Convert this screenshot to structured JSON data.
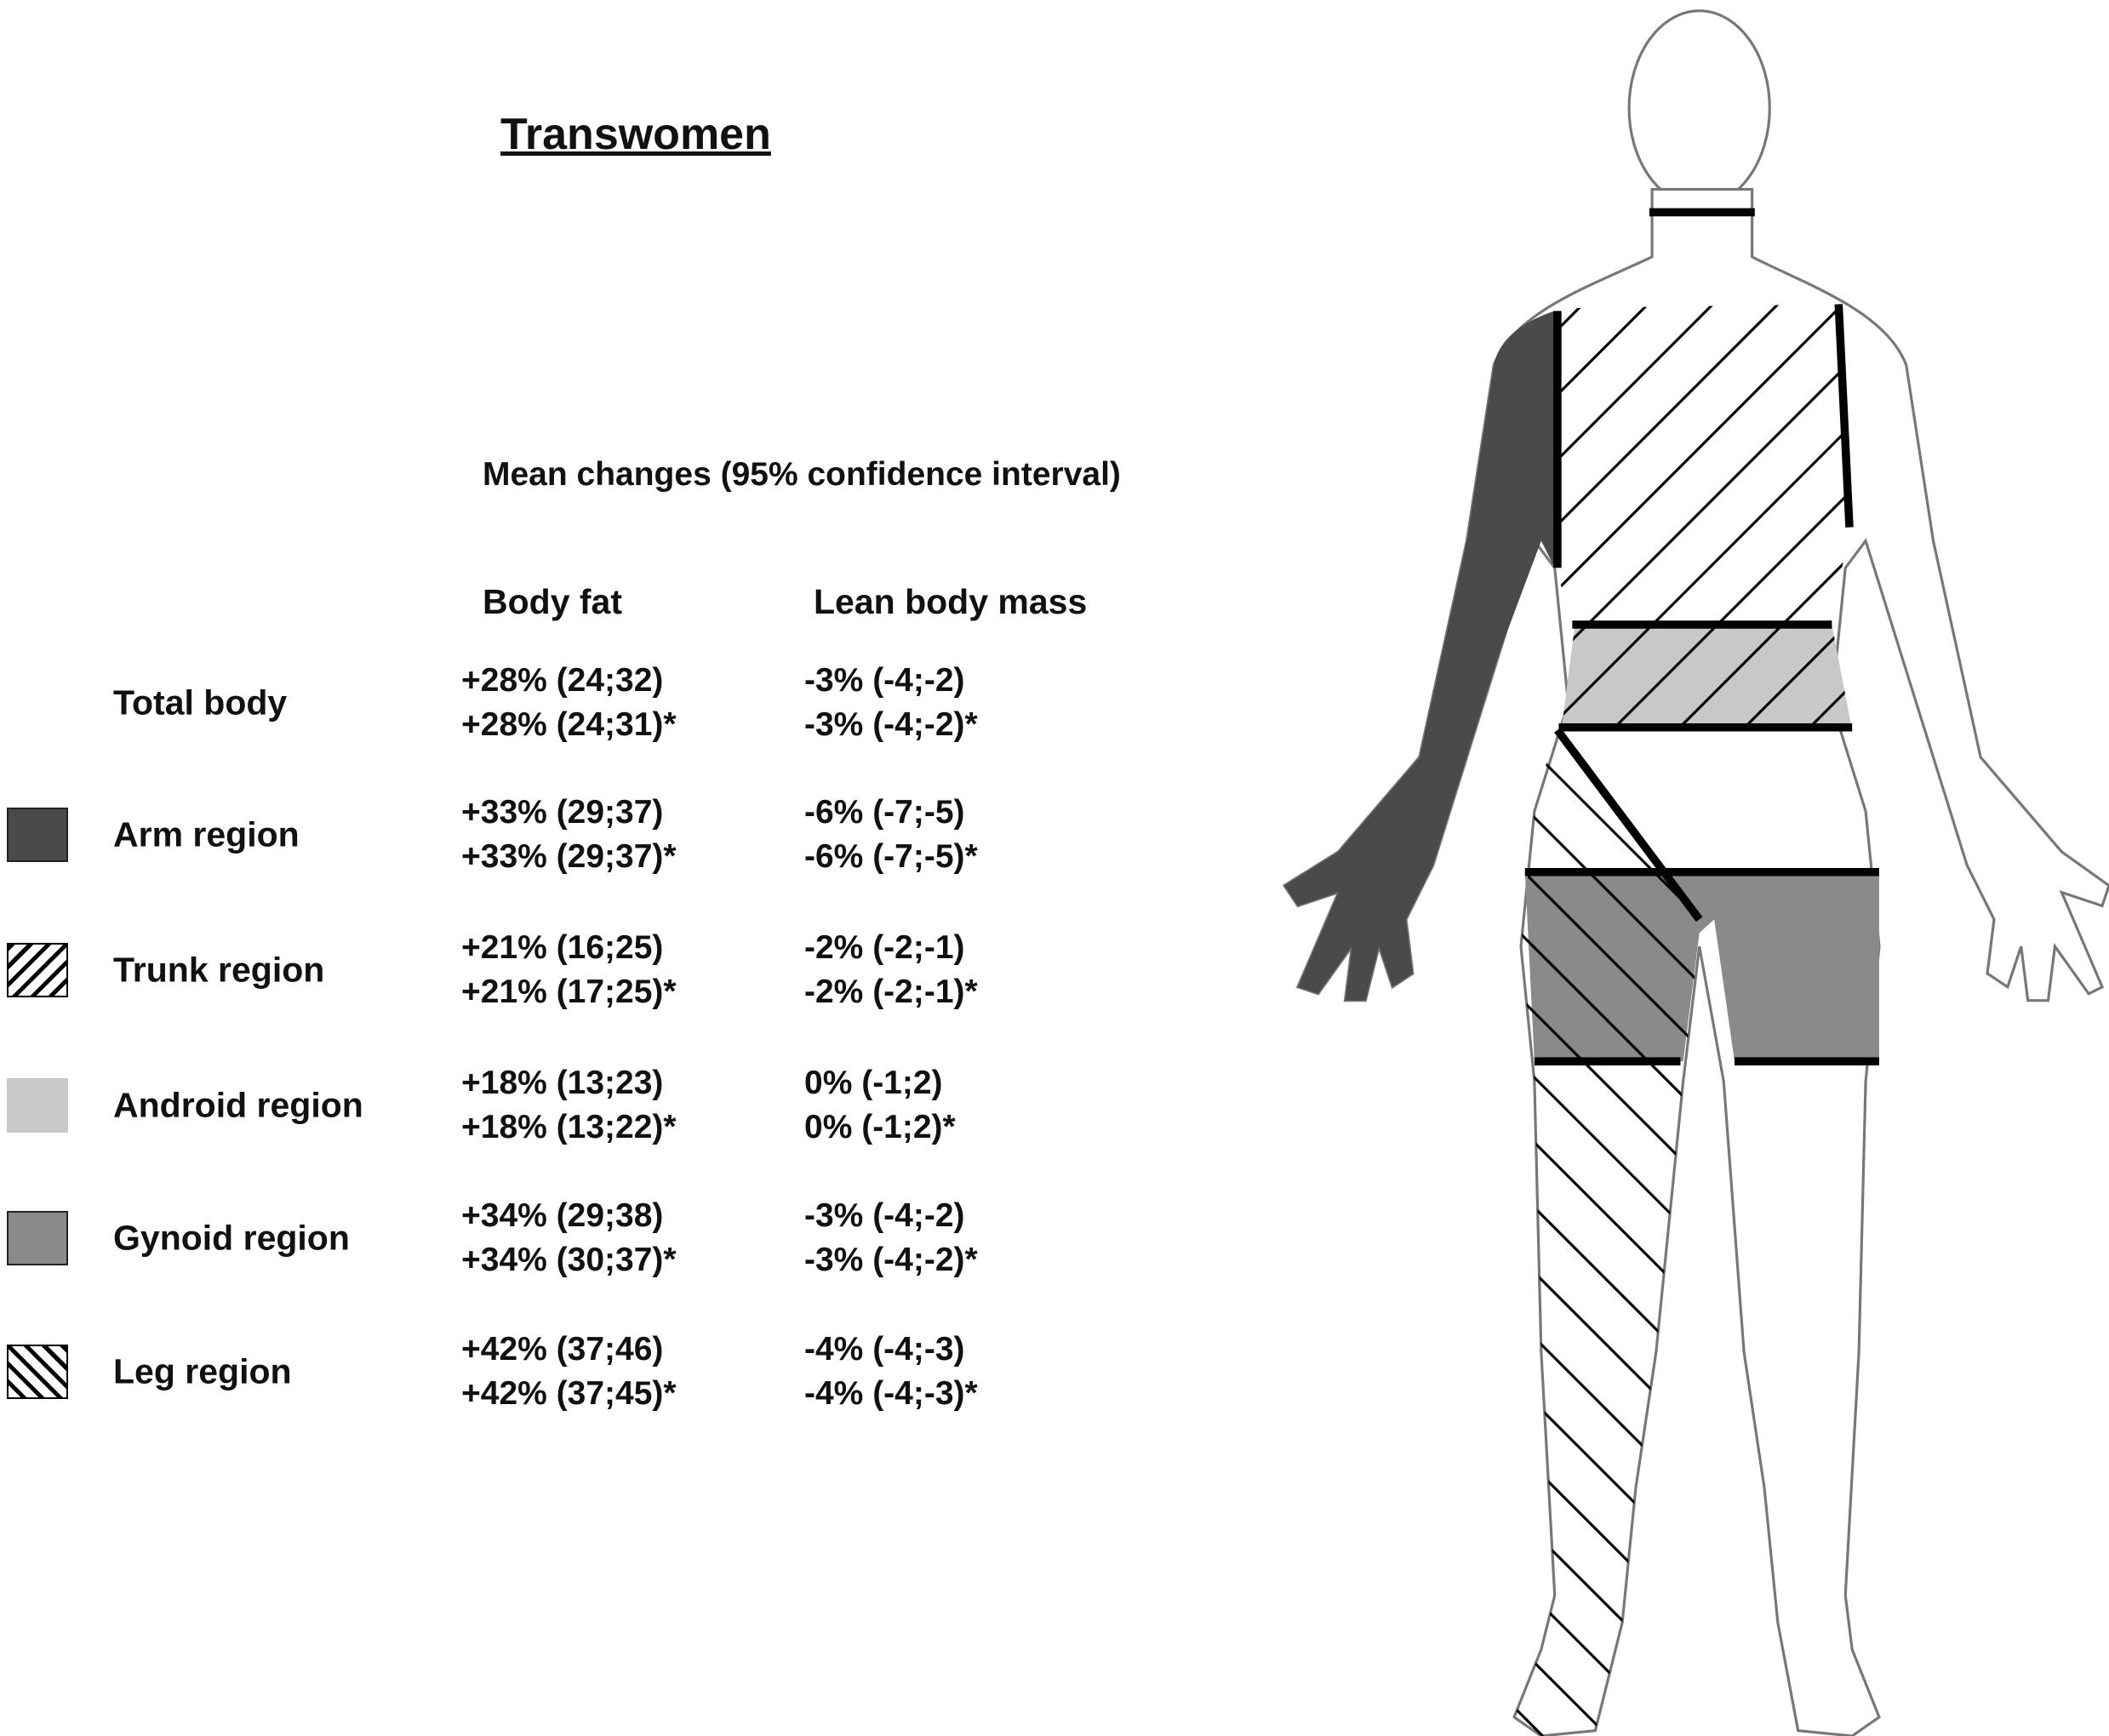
{
  "title": "Transwomen",
  "subtitle": "Mean changes (95% confidence interval)",
  "columns": {
    "body_fat": "Body fat",
    "lean_mass": "Lean body mass"
  },
  "colors": {
    "arm": "#4a4a4a",
    "android": "#c8c8c8",
    "gynoid": "#8a8a8a",
    "outline": "#000000"
  },
  "rows": [
    {
      "label": "Total body",
      "swatch": "none",
      "body_fat": [
        "+28% (24;32)",
        "+28% (24;31)*"
      ],
      "lean_mass": [
        "-3% (-4;-2)",
        "-3% (-4;-2)*"
      ]
    },
    {
      "label": "Arm region",
      "swatch": "solid-dark-gray",
      "body_fat": [
        "+33% (29;37)",
        "+33% (29;37)*"
      ],
      "lean_mass": [
        "-6% (-7;-5)",
        "-6% (-7;-5)*"
      ]
    },
    {
      "label": "Trunk region",
      "swatch": "forward-hatch",
      "body_fat": [
        "+21% (16;25)",
        "+21% (17;25)*"
      ],
      "lean_mass": [
        "-2% (-2;-1)",
        "-2% (-2;-1)*"
      ]
    },
    {
      "label": "Android region",
      "swatch": "solid-light-gray",
      "body_fat": [
        "+18% (13;23)",
        "+18% (13;22)*"
      ],
      "lean_mass": [
        "0% (-1;2)",
        "0% (-1;2)*"
      ]
    },
    {
      "label": "Gynoid region",
      "swatch": "solid-medium-gray",
      "body_fat": [
        "+34% (29;38)",
        "+34% (30;37)*"
      ],
      "lean_mass": [
        "-3% (-4;-2)",
        "-3% (-4;-2)*"
      ]
    },
    {
      "label": "Leg region",
      "swatch": "back-hatch",
      "body_fat": [
        "+42% (37;46)",
        "+42% (37;45)*"
      ],
      "lean_mass": [
        "-4% (-4;-3)",
        "-4% (-4;-3)*"
      ]
    }
  ]
}
